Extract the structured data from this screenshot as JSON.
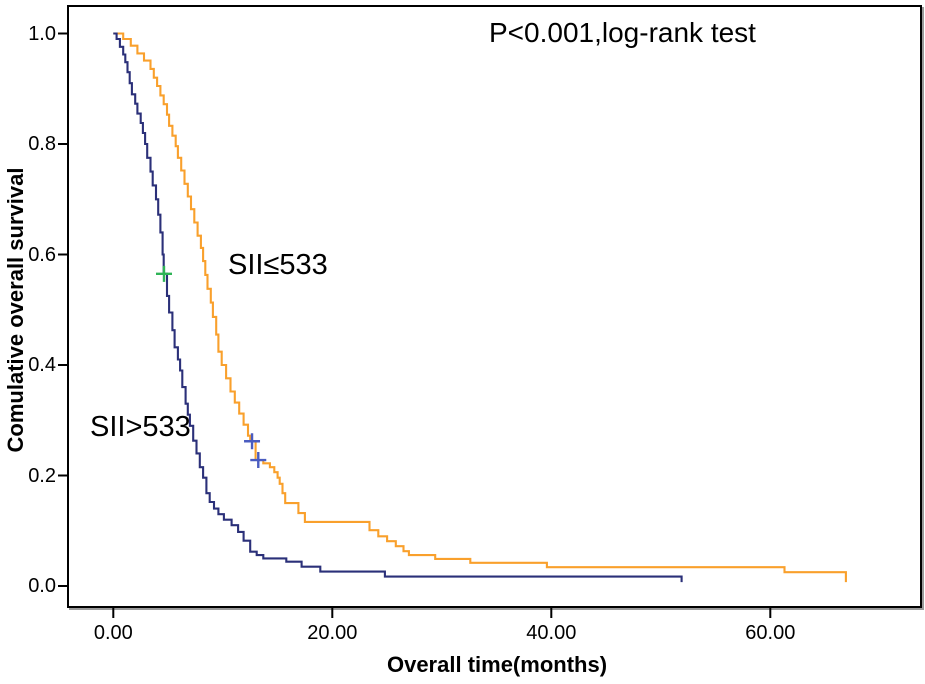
{
  "figure": {
    "background": "#ffffff",
    "frame_color": "#000000"
  },
  "chart_data": {
    "type": "line",
    "subtype": "kaplan_meier_step",
    "title": "",
    "annotation": "P<0.001,log-rank test",
    "xlabel": "Overall time(months)",
    "ylabel": "Comulative overall survival",
    "xlim": [
      -4.1,
      73.8
    ],
    "ylim": [
      -0.04,
      1.05
    ],
    "grid": false,
    "legend_position": "inline-curve-labels",
    "x_ticks": {
      "values": [
        0,
        20,
        40,
        60
      ],
      "labels": [
        "0.00",
        "20.00",
        "40.00",
        "60.00"
      ]
    },
    "y_ticks": {
      "values": [
        0,
        0.2,
        0.4,
        0.6,
        0.8,
        1.0
      ],
      "labels": [
        "0.0",
        "0.2",
        "0.4",
        "0.6",
        "0.8",
        "1.0"
      ]
    },
    "series": [
      {
        "id": "sii-le-533",
        "name": "SII≤533",
        "color": "#f9a02c",
        "censor_color": "#4a5cc0",
        "censors": [
          [
            12.67,
            0.262
          ],
          [
            13.24,
            0.228
          ]
        ],
        "points": [
          [
            0,
            1.0
          ],
          [
            0.9,
            0.99
          ],
          [
            1.6,
            0.978
          ],
          [
            2.2,
            0.964
          ],
          [
            2.8,
            0.951
          ],
          [
            3.4,
            0.936
          ],
          [
            3.7,
            0.92
          ],
          [
            4.0,
            0.905
          ],
          [
            4.3,
            0.888
          ],
          [
            4.6,
            0.872
          ],
          [
            4.9,
            0.853
          ],
          [
            5.1,
            0.833
          ],
          [
            5.4,
            0.815
          ],
          [
            5.7,
            0.796
          ],
          [
            5.9,
            0.775
          ],
          [
            6.2,
            0.752
          ],
          [
            6.5,
            0.728
          ],
          [
            6.8,
            0.705
          ],
          [
            7.1,
            0.682
          ],
          [
            7.4,
            0.658
          ],
          [
            7.7,
            0.634
          ],
          [
            8.0,
            0.612
          ],
          [
            8.2,
            0.588
          ],
          [
            8.4,
            0.563
          ],
          [
            8.6,
            0.538
          ],
          [
            8.9,
            0.513
          ],
          [
            9.1,
            0.487
          ],
          [
            9.4,
            0.455
          ],
          [
            9.6,
            0.424
          ],
          [
            9.9,
            0.4
          ],
          [
            10.3,
            0.376
          ],
          [
            10.7,
            0.352
          ],
          [
            11.1,
            0.332
          ],
          [
            11.5,
            0.312
          ],
          [
            11.9,
            0.292
          ],
          [
            12.3,
            0.272
          ],
          [
            12.5,
            0.262
          ],
          [
            13.0,
            0.228
          ],
          [
            13.7,
            0.222
          ],
          [
            14.3,
            0.215
          ],
          [
            14.7,
            0.206
          ],
          [
            15.0,
            0.196
          ],
          [
            15.2,
            0.185
          ],
          [
            15.45,
            0.168
          ],
          [
            15.7,
            0.15
          ],
          [
            16.9,
            0.132
          ],
          [
            17.5,
            0.116
          ],
          [
            23.4,
            0.101
          ],
          [
            24.2,
            0.09
          ],
          [
            25.0,
            0.081
          ],
          [
            25.8,
            0.072
          ],
          [
            26.5,
            0.063
          ],
          [
            27.0,
            0.056
          ],
          [
            29.4,
            0.049
          ],
          [
            32.6,
            0.042
          ],
          [
            39.6,
            0.034
          ],
          [
            61.3,
            0.025
          ],
          [
            66.9,
            0.007
          ]
        ]
      },
      {
        "id": "sii-gt-533",
        "name": "SII>533",
        "color": "#2b3079",
        "censor_color": "#2fb457",
        "censors": [
          [
            4.63,
            0.565
          ]
        ],
        "points": [
          [
            0,
            1.0
          ],
          [
            0.3,
            0.99
          ],
          [
            0.6,
            0.976
          ],
          [
            0.9,
            0.962
          ],
          [
            1.1,
            0.948
          ],
          [
            1.3,
            0.93
          ],
          [
            1.5,
            0.91
          ],
          [
            1.7,
            0.89
          ],
          [
            2.0,
            0.873
          ],
          [
            2.2,
            0.855
          ],
          [
            2.5,
            0.838
          ],
          [
            2.7,
            0.82
          ],
          [
            2.9,
            0.8
          ],
          [
            3.1,
            0.775
          ],
          [
            3.4,
            0.75
          ],
          [
            3.6,
            0.725
          ],
          [
            3.9,
            0.7
          ],
          [
            4.1,
            0.672
          ],
          [
            4.3,
            0.64
          ],
          [
            4.5,
            0.6
          ],
          [
            4.6,
            0.565
          ],
          [
            4.9,
            0.525
          ],
          [
            5.1,
            0.495
          ],
          [
            5.4,
            0.463
          ],
          [
            5.6,
            0.432
          ],
          [
            5.9,
            0.41
          ],
          [
            6.1,
            0.39
          ],
          [
            6.3,
            0.36
          ],
          [
            6.6,
            0.33
          ],
          [
            6.8,
            0.31
          ],
          [
            7.0,
            0.29
          ],
          [
            7.3,
            0.263
          ],
          [
            7.6,
            0.24
          ],
          [
            7.9,
            0.215
          ],
          [
            8.2,
            0.196
          ],
          [
            8.5,
            0.168
          ],
          [
            8.8,
            0.152
          ],
          [
            9.2,
            0.14
          ],
          [
            9.6,
            0.13
          ],
          [
            10.1,
            0.12
          ],
          [
            10.8,
            0.11
          ],
          [
            11.4,
            0.098
          ],
          [
            11.9,
            0.082
          ],
          [
            12.5,
            0.062
          ],
          [
            13.1,
            0.056
          ],
          [
            13.7,
            0.05
          ],
          [
            15.8,
            0.044
          ],
          [
            17.2,
            0.035
          ],
          [
            18.9,
            0.026
          ],
          [
            24.8,
            0.017
          ],
          [
            51.9,
            0.007
          ]
        ]
      }
    ]
  }
}
